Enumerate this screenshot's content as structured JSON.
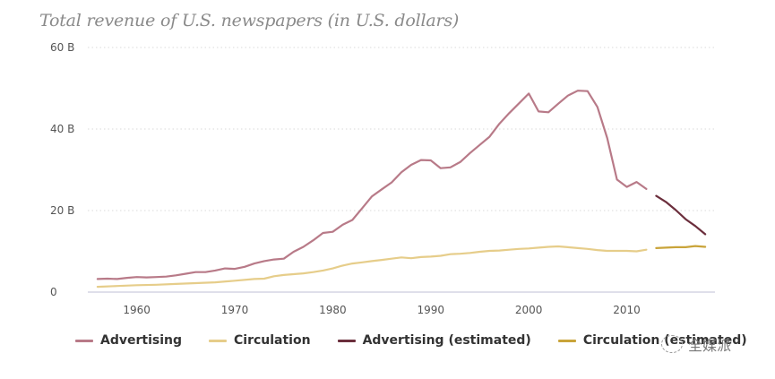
{
  "chart_data": {
    "type": "line",
    "title": "Total revenue of U.S. newspapers (in U.S. dollars)",
    "xlabel": "",
    "ylabel": "",
    "xlim": [
      1955,
      2019
    ],
    "ylim": [
      0,
      60
    ],
    "y_ticks": [
      {
        "value": 0,
        "label": "0"
      },
      {
        "value": 20,
        "label": "20 B"
      },
      {
        "value": 40,
        "label": "40 B"
      },
      {
        "value": 60,
        "label": "60 B"
      }
    ],
    "x_ticks": [
      {
        "value": 1960,
        "label": "1960"
      },
      {
        "value": 1970,
        "label": "1970"
      },
      {
        "value": 1980,
        "label": "1980"
      },
      {
        "value": 1990,
        "label": "1990"
      },
      {
        "value": 2000,
        "label": "2000"
      },
      {
        "value": 2010,
        "label": "2010"
      }
    ],
    "grid": "horizontal-dotted",
    "legend_position": "bottom",
    "series": [
      {
        "name": "Advertising",
        "color": "#b87a88",
        "x": [
          1956,
          1957,
          1958,
          1959,
          1960,
          1961,
          1962,
          1963,
          1964,
          1965,
          1966,
          1967,
          1968,
          1969,
          1970,
          1971,
          1972,
          1973,
          1974,
          1975,
          1976,
          1977,
          1978,
          1979,
          1980,
          1981,
          1982,
          1983,
          1984,
          1985,
          1986,
          1987,
          1988,
          1989,
          1990,
          1991,
          1992,
          1993,
          1994,
          1995,
          1996,
          1997,
          1998,
          1999,
          2000,
          2001,
          2002,
          2003,
          2004,
          2005,
          2006,
          2007,
          2008,
          2009,
          2010,
          2011,
          2012
        ],
        "values": [
          3.2,
          3.3,
          3.2,
          3.5,
          3.7,
          3.6,
          3.7,
          3.8,
          4.1,
          4.5,
          4.9,
          4.9,
          5.3,
          5.8,
          5.7,
          6.2,
          7.0,
          7.6,
          8.0,
          8.2,
          9.9,
          11.1,
          12.7,
          14.5,
          14.8,
          16.5,
          17.7,
          20.6,
          23.5,
          25.2,
          26.9,
          29.4,
          31.2,
          32.4,
          32.3,
          30.4,
          30.6,
          31.9,
          34.1,
          36.1,
          38.1,
          41.3,
          43.9,
          46.3,
          48.7,
          44.3,
          44.1,
          46.2,
          48.2,
          49.4,
          49.3,
          45.4,
          37.8,
          27.6,
          25.8,
          27.0,
          25.3
        ]
      },
      {
        "name": "Circulation",
        "color": "#e6cd8a",
        "x": [
          1956,
          1958,
          1960,
          1962,
          1964,
          1966,
          1968,
          1970,
          1972,
          1973,
          1974,
          1975,
          1976,
          1977,
          1978,
          1979,
          1980,
          1981,
          1982,
          1983,
          1984,
          1985,
          1986,
          1987,
          1988,
          1989,
          1990,
          1991,
          1992,
          1993,
          1994,
          1995,
          1996,
          1997,
          1998,
          1999,
          2000,
          2001,
          2002,
          2003,
          2004,
          2005,
          2006,
          2007,
          2008,
          2009,
          2010,
          2011,
          2012
        ],
        "values": [
          1.3,
          1.5,
          1.7,
          1.8,
          2.0,
          2.2,
          2.4,
          2.8,
          3.2,
          3.3,
          3.9,
          4.2,
          4.4,
          4.6,
          4.9,
          5.3,
          5.8,
          6.5,
          7.0,
          7.3,
          7.6,
          7.9,
          8.2,
          8.5,
          8.3,
          8.6,
          8.7,
          8.9,
          9.3,
          9.4,
          9.6,
          9.9,
          10.1,
          10.2,
          10.4,
          10.6,
          10.7,
          10.9,
          11.1,
          11.2,
          11.0,
          10.8,
          10.6,
          10.3,
          10.1,
          10.1,
          10.1,
          10.0,
          10.4
        ]
      },
      {
        "name": "Advertising (estimated)",
        "color": "#6b2e3c",
        "x": [
          2013,
          2014,
          2015,
          2016,
          2017,
          2018
        ],
        "values": [
          23.6,
          22.1,
          20.1,
          17.9,
          16.2,
          14.2
        ]
      },
      {
        "name": "Circulation (estimated)",
        "color": "#c9a43a",
        "x": [
          2013,
          2014,
          2015,
          2016,
          2017,
          2018
        ],
        "values": [
          10.8,
          10.9,
          11.0,
          11.0,
          11.3,
          11.1
        ]
      }
    ]
  },
  "legend": [
    {
      "label": "Advertising",
      "color": "#b87a88"
    },
    {
      "label": "Circulation",
      "color": "#e6cd8a"
    },
    {
      "label": "Advertising (estimated)",
      "color": "#6b2e3c"
    },
    {
      "label": "Circulation (estimated)",
      "color": "#c9a43a"
    }
  ],
  "watermark": {
    "text": "全媒派"
  }
}
